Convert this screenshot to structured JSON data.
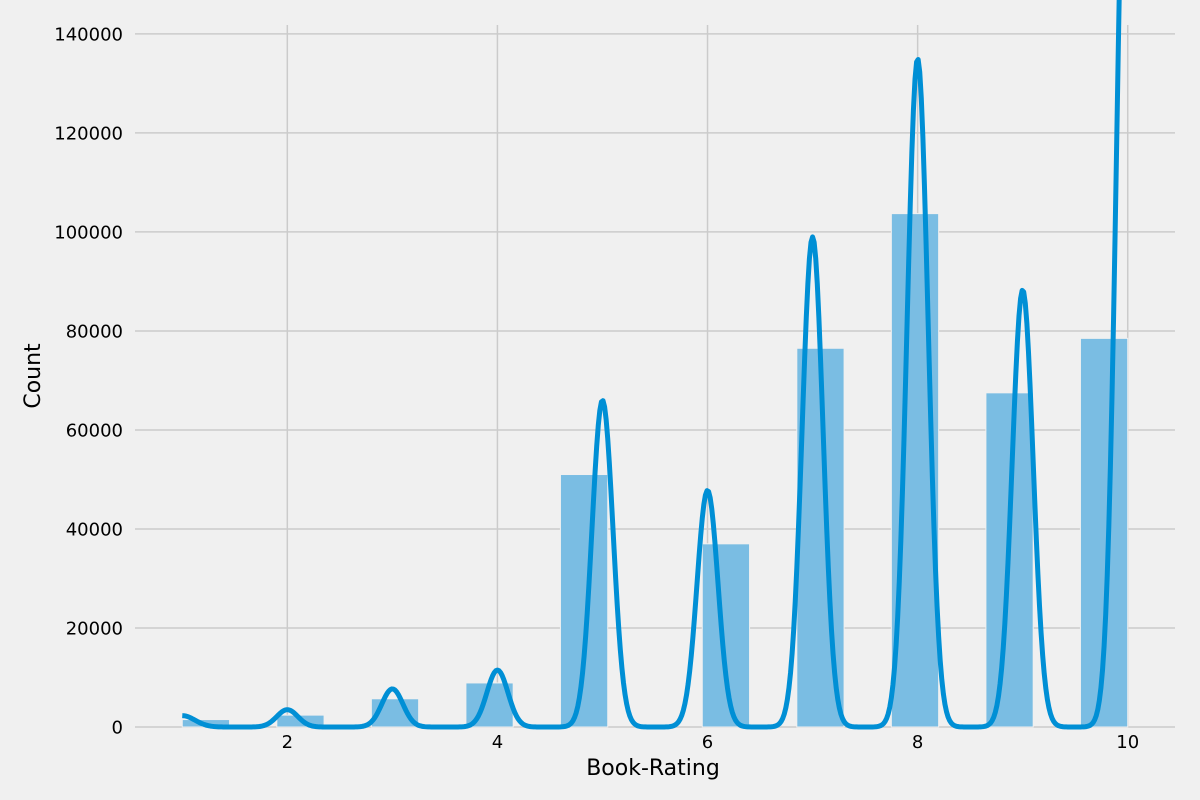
{
  "chart_data": {
    "type": "bar",
    "title": "",
    "xlabel": "Book-Rating",
    "ylabel": "Count",
    "xlim": [
      0.55,
      10.45
    ],
    "ylim": [
      0,
      141800
    ],
    "x_ticks": [
      2,
      4,
      6,
      8,
      10
    ],
    "x_tick_labels": [
      "2",
      "4",
      "6",
      "8",
      "10"
    ],
    "y_ticks": [
      0,
      20000,
      40000,
      60000,
      80000,
      100000,
      120000,
      140000
    ],
    "y_tick_labels": [
      "0",
      "20000",
      "40000",
      "60000",
      "80000",
      "100000",
      "120000",
      "140000"
    ],
    "grid": true,
    "legend": "none",
    "bars": [
      {
        "x_start": 1.0,
        "x_end": 1.45,
        "value": 1500
      },
      {
        "x_start": 1.9,
        "x_end": 2.35,
        "value": 2400
      },
      {
        "x_start": 2.8,
        "x_end": 3.25,
        "value": 5700
      },
      {
        "x_start": 3.7,
        "x_end": 4.15,
        "value": 8900
      },
      {
        "x_start": 4.6,
        "x_end": 5.05,
        "value": 51000
      },
      {
        "x_start": 5.95,
        "x_end": 6.4,
        "value": 37000
      },
      {
        "x_start": 6.85,
        "x_end": 7.3,
        "value": 76500
      },
      {
        "x_start": 7.75,
        "x_end": 8.2,
        "value": 103700
      },
      {
        "x_start": 8.65,
        "x_end": 9.1,
        "value": 67500
      },
      {
        "x_start": 9.55,
        "x_end": 10.0,
        "value": 78500
      }
    ],
    "kde_peaks": [
      {
        "x": 1.0,
        "y": 2300,
        "width": 0.12
      },
      {
        "x": 2.0,
        "y": 3500,
        "width": 0.1
      },
      {
        "x": 3.0,
        "y": 7700,
        "width": 0.1
      },
      {
        "x": 4.0,
        "y": 11500,
        "width": 0.1
      },
      {
        "x": 5.0,
        "y": 66000,
        "width": 0.1
      },
      {
        "x": 6.0,
        "y": 47800,
        "width": 0.1
      },
      {
        "x": 7.0,
        "y": 99000,
        "width": 0.1
      },
      {
        "x": 8.0,
        "y": 135000,
        "width": 0.1
      },
      {
        "x": 9.0,
        "y": 88300,
        "width": 0.1
      },
      {
        "x": 10.0,
        "y": 205000,
        "width": 0.1
      }
    ],
    "colors": {
      "bar_fill": "#7abde3",
      "bar_edge": "#f0f0f0",
      "line": "#008fd5",
      "grid": "#cbcbcb",
      "background": "#f0f0f0"
    }
  }
}
